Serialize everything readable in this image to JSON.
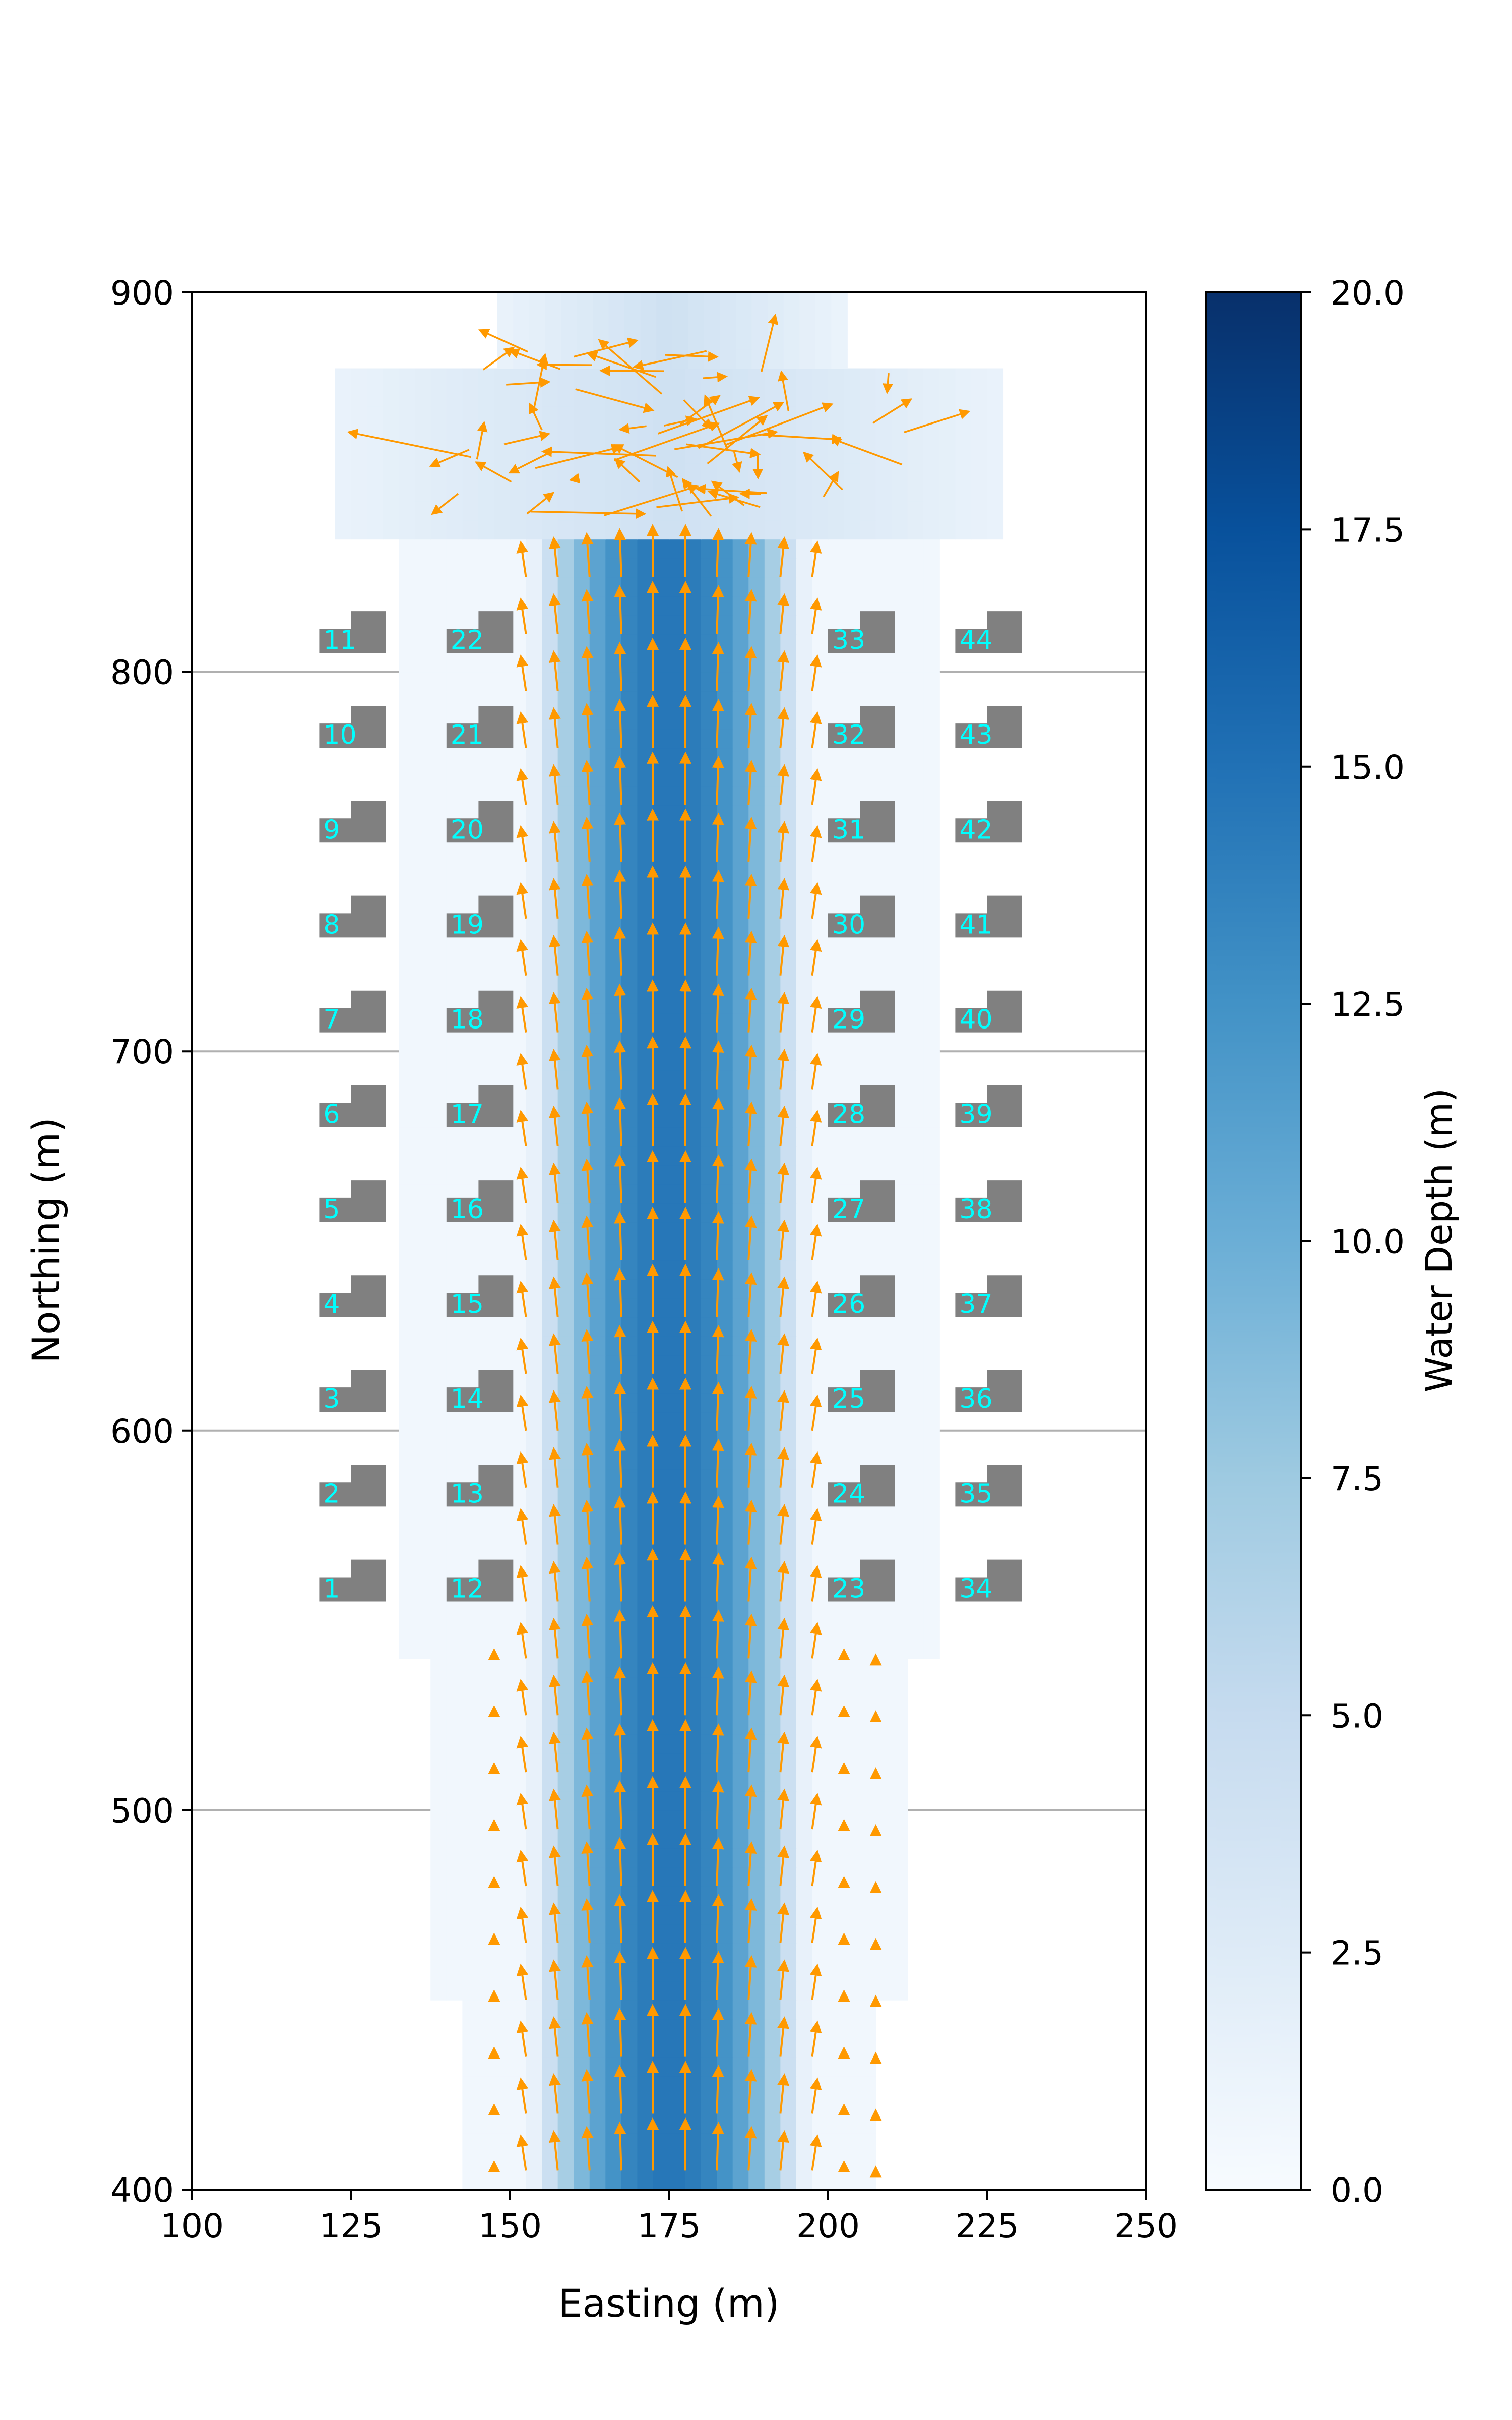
{
  "chart_data": {
    "type": "heatmap",
    "title": "",
    "xlabel": "Easting (m)",
    "ylabel": "Northing (m)",
    "xlim": [
      100,
      250
    ],
    "ylim": [
      400,
      900
    ],
    "xticks": [
      100,
      125,
      150,
      175,
      200,
      225,
      250
    ],
    "xtick_labels": [
      "100",
      "125",
      "150",
      "175",
      "200",
      "225",
      "250"
    ],
    "yticks": [
      400,
      500,
      600,
      700,
      800,
      900
    ],
    "ytick_labels": [
      "400",
      "500",
      "600",
      "700",
      "800",
      "900"
    ],
    "grid": "horizontal",
    "colorbar": {
      "label": "Water Depth (m)",
      "range": [
        0,
        20
      ],
      "ticks": [
        0,
        2.5,
        5,
        7.5,
        10,
        12.5,
        15,
        17.5,
        20
      ],
      "tick_labels": [
        "0.0",
        "2.5",
        "5.0",
        "7.5",
        "10.0",
        "12.5",
        "15.0",
        "17.5",
        "20.0"
      ],
      "colormap": "Blues"
    },
    "channel": {
      "center_easting": 175,
      "peak_depth": 14,
      "upper_region_start_northing": 835,
      "extent": [
        {
          "y_from": 400,
          "y_to": 448,
          "x_from": 142.5,
          "x_to": 207.5
        },
        {
          "y_from": 448,
          "y_to": 540,
          "x_from": 137.5,
          "x_to": 212.5
        },
        {
          "y_from": 540,
          "y_to": 835,
          "x_from": 132.5,
          "x_to": 217.5
        },
        {
          "y_from": 835,
          "y_to": 880,
          "x_from": 122.5,
          "x_to": 227.5
        },
        {
          "y_from": 880,
          "y_to": 900,
          "x_from": 148.0,
          "x_to": 202.0
        }
      ]
    },
    "buildings": {
      "color": "#808080",
      "label_color": "#00ffff",
      "columns_easting": [
        120,
        140,
        200,
        220
      ],
      "first_northing": 555,
      "spacing_northing": 25,
      "width": 10.5,
      "height": 11,
      "ids": [
        [
          "1",
          "2",
          "3",
          "4",
          "5",
          "6",
          "7",
          "8",
          "9",
          "10",
          "11"
        ],
        [
          "12",
          "13",
          "14",
          "15",
          "16",
          "17",
          "18",
          "19",
          "20",
          "21",
          "22"
        ],
        [
          "23",
          "24",
          "25",
          "26",
          "27",
          "28",
          "29",
          "30",
          "31",
          "32",
          "33"
        ],
        [
          "34",
          "35",
          "36",
          "37",
          "38",
          "39",
          "40",
          "41",
          "42",
          "43",
          "44"
        ]
      ]
    },
    "velocity_field": {
      "color": "#ff9900",
      "columns_easting": [
        147.5,
        152.5,
        157.5,
        162.5,
        167.5,
        172.5,
        177.5,
        182.5,
        187.5,
        192.5,
        197.5,
        202.5,
        207.5
      ],
      "rows_northing": [
        405,
        420,
        435,
        450,
        465,
        480,
        495,
        510,
        525,
        540,
        555,
        570,
        585,
        600,
        615,
        630,
        645,
        660,
        675,
        690,
        705,
        720,
        735,
        750,
        765,
        780,
        795,
        810,
        825
      ],
      "chaotic_region_northing": [
        840,
        895
      ]
    },
    "grid_lines_northing": [
      500,
      600,
      700,
      800
    ]
  }
}
